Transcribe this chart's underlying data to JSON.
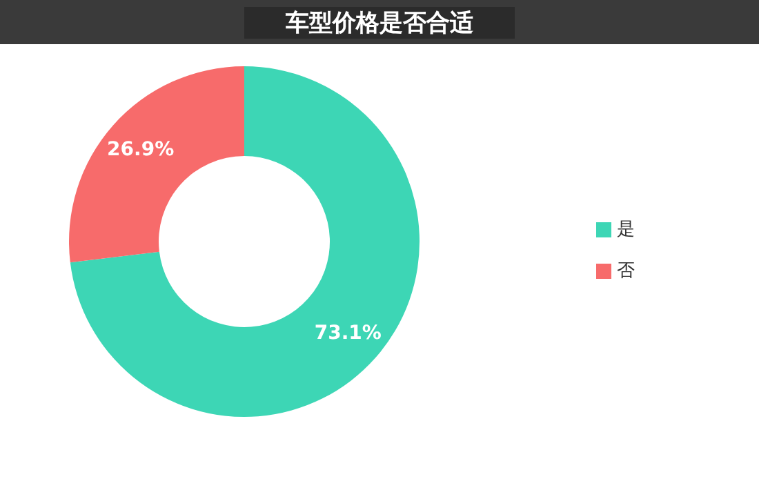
{
  "chart_data": {
    "type": "donut",
    "title": "车型价格是否合适",
    "categories": [
      "是",
      "否"
    ],
    "values": [
      73.1,
      26.9
    ],
    "colors": [
      "#3dd6b5",
      "#f76b6b"
    ],
    "value_labels": [
      "73.1%",
      "26.9%"
    ],
    "legend": "right"
  }
}
